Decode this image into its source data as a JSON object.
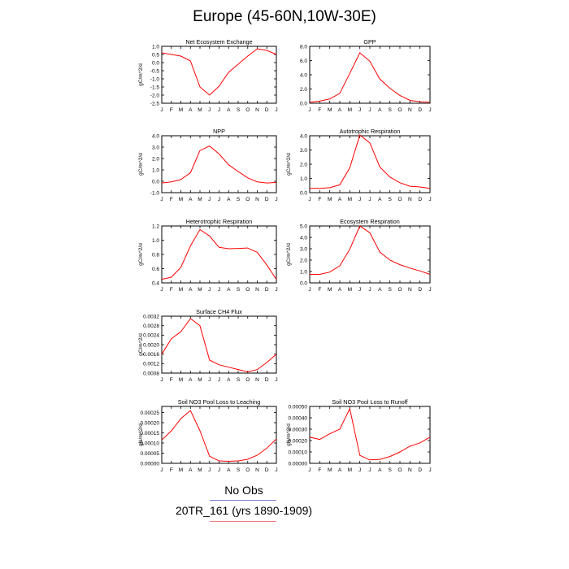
{
  "title": "Europe (45-60N,10W-30E)",
  "legend": [
    {
      "label": "No Obs",
      "color": "#7f7fd0"
    },
    {
      "label": "20TR_161 (yrs 1890-1909)",
      "color": "#f08080"
    }
  ],
  "line_color": "#ff0000",
  "chart_data": [
    {
      "type": "line",
      "title": "Net Ecosystem Exchange",
      "ylabel": "gC/m^2/d",
      "categories": [
        "J",
        "F",
        "M",
        "A",
        "M",
        "J",
        "J",
        "A",
        "S",
        "O",
        "N",
        "D",
        "J"
      ],
      "ylim": [
        -2.5,
        1.0
      ],
      "yticks": [
        "1.0",
        "0.5",
        "0.0",
        "-0.5",
        "-1.0",
        "-1.5",
        "-2.0",
        "-2.5"
      ],
      "ytick_values": [
        1.0,
        0.5,
        0.0,
        -0.5,
        -1.0,
        -1.5,
        -2.0,
        -2.5
      ],
      "values": [
        0.6,
        0.5,
        0.4,
        0.1,
        -1.5,
        -2.0,
        -1.45,
        -0.6,
        -0.1,
        0.4,
        0.85,
        0.75,
        0.5
      ]
    },
    {
      "type": "line",
      "title": "GPP",
      "ylabel": "",
      "categories": [
        "J",
        "F",
        "M",
        "A",
        "M",
        "J",
        "J",
        "A",
        "S",
        "O",
        "N",
        "D",
        "J"
      ],
      "ylim": [
        0,
        8
      ],
      "yticks": [
        "8.0",
        "6.0",
        "4.0",
        "2.0",
        "0.0"
      ],
      "ytick_values": [
        8,
        6,
        4,
        2,
        0
      ],
      "values": [
        0.15,
        0.3,
        0.6,
        1.4,
        4.2,
        7.1,
        5.9,
        3.4,
        2.1,
        1.1,
        0.4,
        0.2,
        0.15
      ]
    },
    {
      "type": "line",
      "title": "NPP",
      "ylabel": "gC/m^2/d",
      "categories": [
        "J",
        "F",
        "M",
        "A",
        "M",
        "J",
        "J",
        "A",
        "S",
        "O",
        "N",
        "D",
        "J"
      ],
      "ylim": [
        -1,
        4
      ],
      "yticks": [
        "4.0",
        "3.0",
        "2.0",
        "1.0",
        "0.0",
        "-1.0"
      ],
      "ytick_values": [
        4,
        3,
        2,
        1,
        0,
        -1
      ],
      "values": [
        -0.15,
        -0.05,
        0.15,
        0.75,
        2.7,
        3.1,
        2.4,
        1.45,
        0.85,
        0.3,
        -0.05,
        -0.15,
        -0.1
      ]
    },
    {
      "type": "line",
      "title": "Autotrophic Respiration",
      "ylabel": "gC/m^2/d",
      "categories": [
        "J",
        "F",
        "M",
        "A",
        "M",
        "J",
        "J",
        "A",
        "S",
        "O",
        "N",
        "D",
        "J"
      ],
      "ylim": [
        0,
        4
      ],
      "yticks": [
        "4.0",
        "3.0",
        "2.0",
        "1.0",
        "0.0"
      ],
      "ytick_values": [
        4,
        3,
        2,
        1,
        0
      ],
      "values": [
        0.3,
        0.3,
        0.35,
        0.55,
        1.75,
        4.05,
        3.5,
        1.8,
        1.1,
        0.7,
        0.45,
        0.4,
        0.3
      ]
    },
    {
      "type": "line",
      "title": "Heterotrophic Respiration",
      "ylabel": "gC/m^2/d",
      "categories": [
        "J",
        "F",
        "M",
        "A",
        "M",
        "J",
        "J",
        "A",
        "S",
        "O",
        "N",
        "D",
        "J"
      ],
      "ylim": [
        0.4,
        1.2
      ],
      "yticks": [
        "1.2",
        "1.0",
        "0.8",
        "0.6",
        "0.4"
      ],
      "ytick_values": [
        1.2,
        1.0,
        0.8,
        0.6,
        0.4
      ],
      "values": [
        0.45,
        0.48,
        0.62,
        0.92,
        1.15,
        1.06,
        0.9,
        0.88,
        0.885,
        0.89,
        0.83,
        0.65,
        0.45
      ]
    },
    {
      "type": "line",
      "title": "Ecosystem Respiration",
      "ylabel": "gC/m^2/d",
      "categories": [
        "J",
        "F",
        "M",
        "A",
        "M",
        "J",
        "J",
        "A",
        "S",
        "O",
        "N",
        "D",
        "J"
      ],
      "ylim": [
        0,
        5
      ],
      "yticks": [
        "5.0",
        "4.0",
        "3.0",
        "2.0",
        "1.0",
        "0.0"
      ],
      "ytick_values": [
        5,
        4,
        3,
        2,
        1,
        0
      ],
      "values": [
        0.75,
        0.75,
        0.95,
        1.5,
        2.95,
        5.0,
        4.4,
        2.7,
        2.0,
        1.6,
        1.3,
        1.05,
        0.75
      ]
    },
    {
      "type": "line",
      "title": "Surface CH4 Flux",
      "ylabel": "gC/m^2/d",
      "categories": [
        "J",
        "F",
        "M",
        "A",
        "M",
        "J",
        "J",
        "A",
        "S",
        "O",
        "N",
        "D",
        "J"
      ],
      "ylim": [
        0.0008,
        0.0032
      ],
      "yticks": [
        "0.0032",
        "0.0028",
        "0.0024",
        "0.0020",
        "0.0016",
        "0.0012",
        "0.0008"
      ],
      "ytick_values": [
        0.0032,
        0.0028,
        0.0024,
        0.002,
        0.0016,
        0.0012,
        0.0008
      ],
      "values": [
        0.0016,
        0.00225,
        0.00255,
        0.0031,
        0.0028,
        0.00135,
        0.00115,
        0.00105,
        0.00095,
        0.00085,
        0.00095,
        0.00125,
        0.0016
      ]
    },
    {
      "type": "line",
      "title": "Soil NO3 Pool Loss to Leaching",
      "ylabel": "gN/m^2/d",
      "categories": [
        "J",
        "F",
        "M",
        "A",
        "M",
        "J",
        "J",
        "A",
        "S",
        "O",
        "N",
        "D",
        "J"
      ],
      "ylim": [
        0,
        0.00028
      ],
      "yticks": [
        "0.00025",
        "0.00020",
        "0.00015",
        "0.00010",
        "0.00005",
        "0.00000"
      ],
      "ytick_values": [
        0.00025,
        0.0002,
        0.00015,
        0.0001,
        5e-05,
        0.0
      ],
      "values": [
        0.000115,
        0.00016,
        0.00022,
        0.00026,
        0.00016,
        3.5e-05,
        1.2e-05,
        1e-05,
        1.2e-05,
        2e-05,
        4e-05,
        7.5e-05,
        0.00012
      ]
    },
    {
      "type": "line",
      "title": "Soil NO3 Pool Loss to Runoff",
      "ylabel": "gN/m^2/d",
      "categories": [
        "J",
        "F",
        "M",
        "A",
        "M",
        "J",
        "J",
        "A",
        "S",
        "O",
        "N",
        "D",
        "J"
      ],
      "ylim": [
        0,
        0.0005
      ],
      "yticks": [
        "0.00050",
        "0.00040",
        "0.00030",
        "0.00020",
        "0.00010",
        "0.00000"
      ],
      "ytick_values": [
        0.0005,
        0.0004,
        0.0003,
        0.0002,
        0.0001,
        0.0
      ],
      "values": [
        0.00023,
        0.00021,
        0.00026,
        0.0003,
        0.00048,
        7e-05,
        3e-05,
        3.5e-05,
        6e-05,
        0.0001,
        0.00015,
        0.00018,
        0.00023
      ]
    }
  ]
}
